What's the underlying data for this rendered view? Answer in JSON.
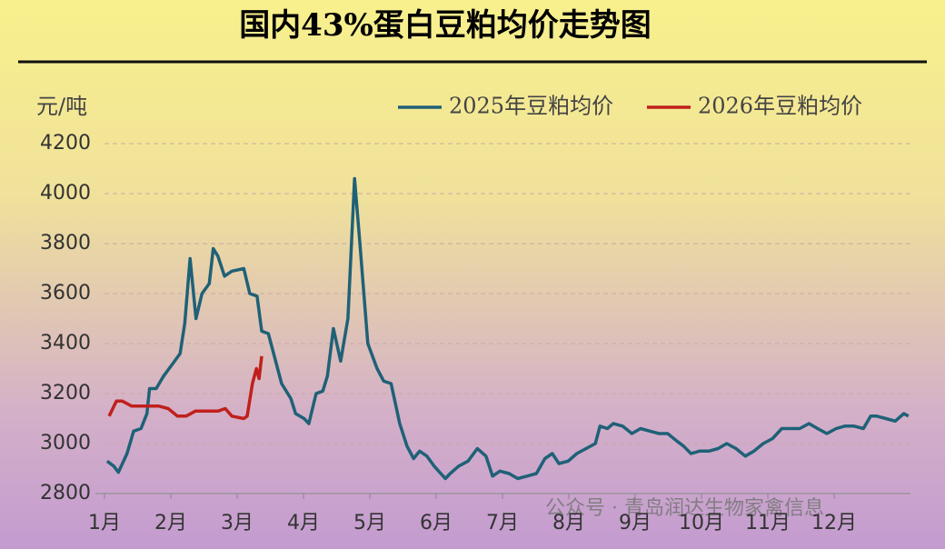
{
  "chart_data": {
    "type": "line",
    "title": "国内43%蛋白豆粕均价走势图",
    "y_label": "元/吨",
    "annotation": "公众号 · 青岛润达生物家禽信息",
    "xlim": [
      1,
      13.15
    ],
    "ylim": [
      2800,
      4200
    ],
    "yticks": [
      2800,
      3000,
      3200,
      3400,
      3600,
      3800,
      4000,
      4200
    ],
    "xticks": [
      {
        "value": 1,
        "label": "1月"
      },
      {
        "value": 2,
        "label": "2月"
      },
      {
        "value": 3,
        "label": "3月"
      },
      {
        "value": 4,
        "label": "4月"
      },
      {
        "value": 5,
        "label": "5月"
      },
      {
        "value": 6,
        "label": "6月"
      },
      {
        "value": 7,
        "label": "7月"
      },
      {
        "value": 8,
        "label": "8月"
      },
      {
        "value": 9,
        "label": "9月"
      },
      {
        "value": 10,
        "label": "10月"
      },
      {
        "value": 11,
        "label": "11月"
      },
      {
        "value": 12,
        "label": "12月"
      }
    ],
    "grid": true,
    "legend": "top-right",
    "series": [
      {
        "name": "2025年豆粕均价",
        "color": "#1f6177",
        "x": [
          1.04,
          1.14,
          1.21,
          1.34,
          1.44,
          1.55,
          1.64,
          1.68,
          1.78,
          1.89,
          2.03,
          2.14,
          2.21,
          2.29,
          2.38,
          2.47,
          2.58,
          2.64,
          2.71,
          2.81,
          2.92,
          3.1,
          3.19,
          3.3,
          3.37,
          3.47,
          3.53,
          3.67,
          3.81,
          3.88,
          4.01,
          4.08,
          4.19,
          4.29,
          4.36,
          4.45,
          4.56,
          4.67,
          4.77,
          4.85,
          4.97,
          5.11,
          5.21,
          5.32,
          5.45,
          5.56,
          5.66,
          5.75,
          5.86,
          5.97,
          6.07,
          6.14,
          6.21,
          6.34,
          6.48,
          6.62,
          6.75,
          6.85,
          6.96,
          7.1,
          7.23,
          7.37,
          7.51,
          7.64,
          7.75,
          7.85,
          7.99,
          8.12,
          8.26,
          8.4,
          8.47,
          8.58,
          8.67,
          8.81,
          8.95,
          9.08,
          9.22,
          9.36,
          9.49,
          9.63,
          9.73,
          9.84,
          9.97,
          10.11,
          10.25,
          10.38,
          10.52,
          10.66,
          10.79,
          10.93,
          11.07,
          11.21,
          11.34,
          11.48,
          11.62,
          11.75,
          11.89,
          12.03,
          12.16,
          12.3,
          12.44,
          12.55,
          12.64,
          12.78,
          12.92,
          13.05,
          13.12
        ],
        "values": [
          2930,
          2910,
          2885,
          2960,
          3050,
          3060,
          3120,
          3220,
          3220,
          3270,
          3320,
          3360,
          3480,
          3740,
          3500,
          3600,
          3640,
          3780,
          3750,
          3670,
          3690,
          3700,
          3600,
          3590,
          3450,
          3440,
          3380,
          3240,
          3180,
          3120,
          3100,
          3080,
          3200,
          3210,
          3270,
          3460,
          3330,
          3500,
          4060,
          3800,
          3400,
          3300,
          3250,
          3240,
          3080,
          2990,
          2940,
          2970,
          2950,
          2910,
          2880,
          2860,
          2880,
          2910,
          2930,
          2980,
          2950,
          2870,
          2890,
          2880,
          2860,
          2870,
          2880,
          2940,
          2960,
          2920,
          2930,
          2960,
          2980,
          3000,
          3070,
          3060,
          3080,
          3070,
          3040,
          3060,
          3050,
          3040,
          3040,
          3010,
          2990,
          2960,
          2970,
          2970,
          2980,
          3000,
          2980,
          2950,
          2970,
          3000,
          3020,
          3060,
          3060,
          3060,
          3080,
          3060,
          3040,
          3060,
          3070,
          3070,
          3060,
          3110,
          3110,
          3100,
          3090,
          3120,
          3110
        ]
      },
      {
        "name": "2026年豆粕均价",
        "color": "#c0201c",
        "x": [
          1.07,
          1.18,
          1.27,
          1.41,
          1.62,
          1.82,
          1.96,
          2.1,
          2.23,
          2.37,
          2.58,
          2.71,
          2.82,
          2.92,
          3.1,
          3.15,
          3.23,
          3.29,
          3.33,
          3.37
        ],
        "values": [
          3110,
          3170,
          3170,
          3150,
          3150,
          3150,
          3140,
          3110,
          3110,
          3130,
          3130,
          3130,
          3140,
          3110,
          3100,
          3110,
          3240,
          3300,
          3260,
          3350
        ]
      }
    ]
  }
}
